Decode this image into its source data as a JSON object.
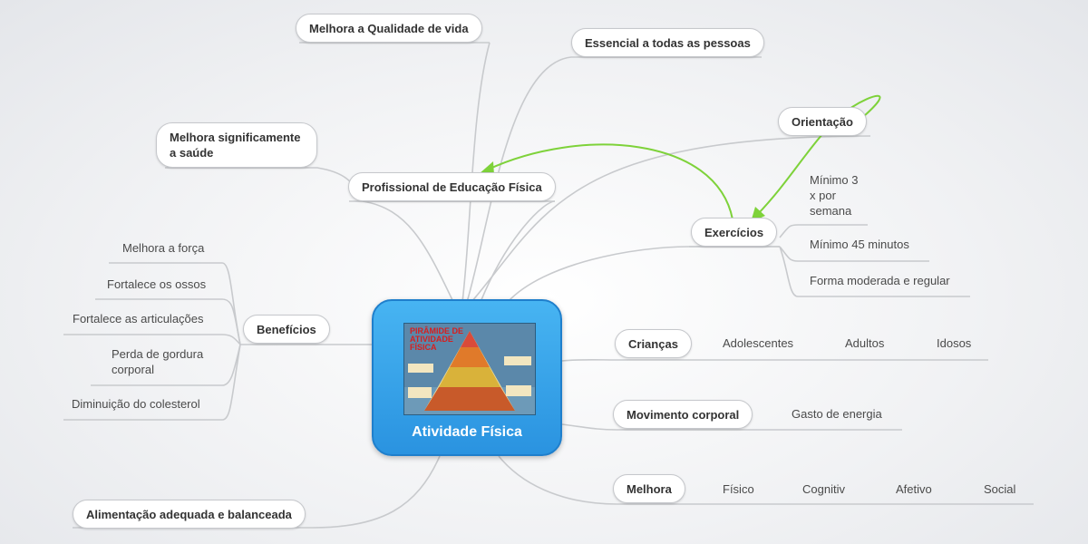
{
  "central": {
    "title": "Atividade Física",
    "image_caption": "PIRÂMIDE DE ATIVIDADE FÍSICA"
  },
  "nodes": {
    "qualidade": "Melhora a Qualidade de vida",
    "essencial": "Essencial a todas as pessoas",
    "orientacao": "Orientação",
    "saude": "Melhora significamente a saúde",
    "profissional": "Profissional de Educação Física",
    "exercicios": "Exercícios",
    "beneficios": "Benefícios",
    "criancas": "Crianças",
    "movimento": "Movimento corporal",
    "melhora": "Melhora",
    "alimentacao": "Alimentação adequada e balanceada"
  },
  "exercicios_leaves": [
    "Mínimo 3 x por semana",
    "Mínimo 45 minutos",
    "Forma moderada e regular"
  ],
  "beneficios_leaves": [
    "Melhora a força",
    "Fortalece os ossos",
    "Fortalece as articulações",
    "Perda de gordura corporal",
    "Diminuição do colesterol"
  ],
  "criancas_leaves": [
    "Adolescentes",
    "Adultos",
    "Idosos"
  ],
  "movimento_leaves": [
    "Gasto de energia"
  ],
  "melhora_leaves": [
    "Físico",
    "Cognitiv",
    "Afetivo",
    "Social"
  ],
  "colors": {
    "connector": "#c8cacd",
    "relation_arrow": "#7ed23a",
    "central_fill": "#3aa5ec"
  }
}
